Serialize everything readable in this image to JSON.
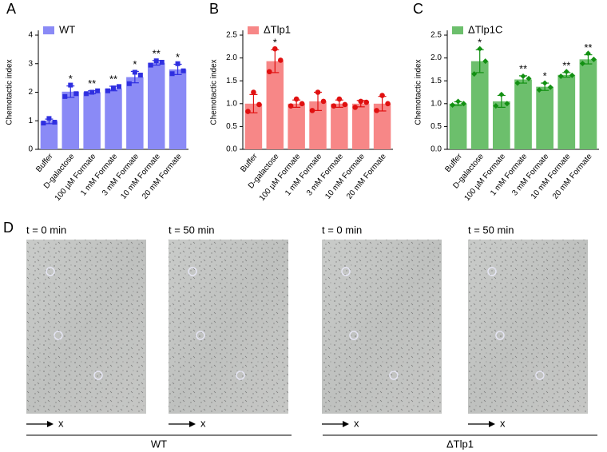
{
  "chart_data": [
    {
      "type": "bar",
      "panel_label": "A",
      "y_label": "Chemotactic index",
      "categories": [
        "Buffer",
        "D-galactose",
        "100 µM Formate",
        "1 mM Formate",
        "3 mM Formate",
        "10 mM Formate",
        "20 mM Formate"
      ],
      "series": [
        {
          "name": "WT",
          "color": "#8a8af6",
          "point_color": "#2f2fe0",
          "values": [
            0.98,
            2.02,
            2.0,
            2.13,
            2.53,
            3.03,
            2.8
          ],
          "errors": [
            0.08,
            0.2,
            0.05,
            0.08,
            0.2,
            0.08,
            0.18
          ],
          "points": [
            [
              0.92,
              1.08,
              0.95
            ],
            [
              1.85,
              2.25,
              1.95
            ],
            [
              1.95,
              2.0,
              2.05
            ],
            [
              2.05,
              2.15,
              2.2
            ],
            [
              2.3,
              2.7,
              2.6
            ],
            [
              2.95,
              3.1,
              3.05
            ],
            [
              2.65,
              3.0,
              2.75
            ]
          ],
          "significance": [
            null,
            "*",
            "**",
            "**",
            "*",
            "**",
            "*"
          ]
        }
      ],
      "ylim": [
        0,
        4
      ],
      "yticks": [
        0,
        1,
        2,
        3,
        4
      ]
    },
    {
      "type": "bar",
      "panel_label": "B",
      "y_label": "Chemotactic index",
      "categories": [
        "Buffer",
        "D-galactose",
        "100 µM Formate",
        "1 mM Formate",
        "3 mM Formate",
        "10 mM Formate",
        "20 mM Formate"
      ],
      "series": [
        {
          "name": "ΔTlp1",
          "color": "#f78787",
          "point_color": "#e01010",
          "values": [
            1.0,
            1.93,
            1.0,
            1.05,
            1.0,
            1.0,
            1.0
          ],
          "errors": [
            0.2,
            0.25,
            0.08,
            0.2,
            0.08,
            0.07,
            0.16
          ],
          "points": [
            [
              0.83,
              1.25,
              0.98
            ],
            [
              1.7,
              2.2,
              1.95
            ],
            [
              0.95,
              1.1,
              1.0
            ],
            [
              0.85,
              1.25,
              1.05
            ],
            [
              0.95,
              1.1,
              0.98
            ],
            [
              0.92,
              1.05,
              1.03
            ],
            [
              0.85,
              1.18,
              1.0
            ]
          ],
          "significance": [
            null,
            "*",
            null,
            null,
            null,
            null,
            null
          ]
        }
      ],
      "ylim": [
        0,
        2.5
      ],
      "yticks": [
        {
          "value": 0,
          "label": "0.0"
        },
        {
          "value": 0.5,
          "label": "0.5"
        },
        {
          "value": 1,
          "label": "1.0"
        },
        {
          "value": 1.5,
          "label": "1.5"
        },
        {
          "value": 2,
          "label": "2.0"
        },
        {
          "value": 2.5,
          "label": "2.5"
        }
      ]
    },
    {
      "type": "bar",
      "panel_label": "C",
      "y_label": "Chemotactic index",
      "categories": [
        "Buffer",
        "D-galactose",
        "100 µM Formate",
        "1 mM Formate",
        "3 mM Formate",
        "10 mM Formate",
        "20 mM Formate"
      ],
      "series": [
        {
          "name": "ΔTlp1C",
          "color": "#6cbf6c",
          "point_color": "#129012",
          "values": [
            1.0,
            1.93,
            1.05,
            1.53,
            1.37,
            1.63,
            1.97
          ],
          "errors": [
            0.04,
            0.25,
            0.13,
            0.08,
            0.08,
            0.05,
            0.1
          ],
          "points": [
            [
              0.97,
              1.05,
              1.0
            ],
            [
              1.65,
              2.2,
              1.93
            ],
            [
              0.95,
              1.2,
              1.0
            ],
            [
              1.45,
              1.6,
              1.55
            ],
            [
              1.3,
              1.45,
              1.36
            ],
            [
              1.6,
              1.7,
              1.62
            ],
            [
              1.88,
              2.1,
              1.97
            ]
          ],
          "significance": [
            null,
            "*",
            null,
            "**",
            "*",
            "**",
            "**"
          ]
        }
      ],
      "ylim": [
        0,
        2.5
      ],
      "yticks": [
        {
          "value": 0,
          "label": "0.0"
        },
        {
          "value": 0.5,
          "label": "0.5"
        },
        {
          "value": 1,
          "label": "1.0"
        },
        {
          "value": 1.5,
          "label": "1.5"
        },
        {
          "value": 2,
          "label": "2.0"
        },
        {
          "value": 2.5,
          "label": "2.5"
        }
      ]
    }
  ],
  "panel_d": {
    "label": "D",
    "images": [
      {
        "time": "t = 0 min",
        "axis": "x"
      },
      {
        "time": "t = 50 min",
        "axis": "x"
      },
      {
        "time": "t = 0 min",
        "axis": "x"
      },
      {
        "time": "t = 50 min",
        "axis": "x"
      }
    ],
    "groups": [
      "WT",
      "ΔTlp1"
    ]
  }
}
